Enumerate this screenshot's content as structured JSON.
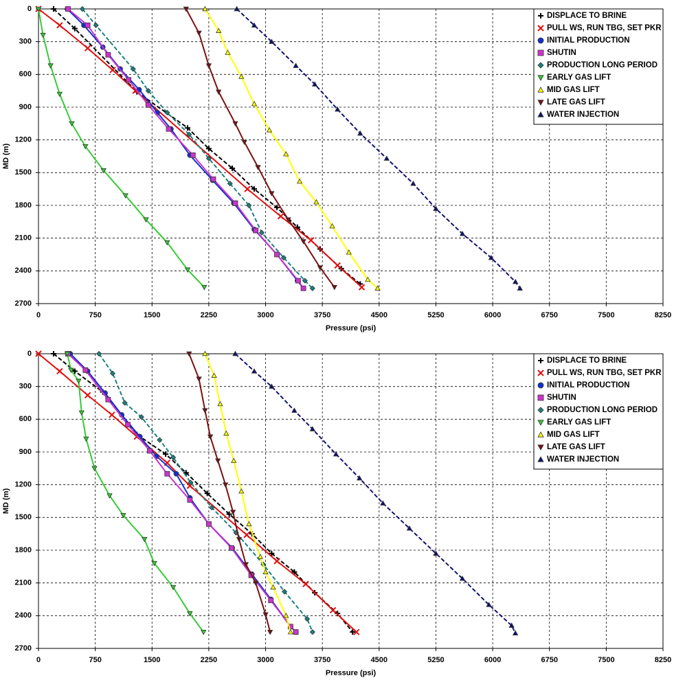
{
  "chart_data": [
    {
      "type": "line",
      "xlabel": "Pressure (psi)",
      "ylabel": "MD (m)",
      "xlim": [
        0,
        8250
      ],
      "xticks": [
        0,
        750,
        1500,
        2250,
        3000,
        3750,
        4500,
        5250,
        6000,
        6750,
        7500,
        8250
      ],
      "ylim": [
        2700,
        0
      ],
      "yticks": [
        0,
        300,
        600,
        900,
        1200,
        1500,
        1800,
        2100,
        2400,
        2700
      ],
      "grid": true,
      "legend": "upper right",
      "series": [
        {
          "name": "DISPLACE TO BRINE",
          "color": "#000000",
          "marker": "plus",
          "dashed": true,
          "x": [
            200,
            480,
            1300,
            1970,
            2250,
            2560,
            2850,
            3150,
            3420,
            3720,
            4000,
            4250
          ],
          "values": [
            0,
            180,
            760,
            1090,
            1280,
            1460,
            1650,
            1820,
            2000,
            2200,
            2380,
            2520
          ]
        },
        {
          "name": "PULL WS, RUN TBG, SET PKR",
          "color": "#e01010",
          "marker": "cross",
          "dashed": false,
          "x": [
            0,
            280,
            650,
            980,
            1280,
            2760,
            3200,
            3600,
            3950,
            4270
          ],
          "values": [
            0,
            150,
            360,
            560,
            750,
            1650,
            1900,
            2120,
            2350,
            2550
          ]
        },
        {
          "name": "INITIAL PRODUCTION",
          "color": "#1030d0",
          "marker": "circle",
          "dashed": false,
          "x": [
            380,
            600,
            850,
            1080,
            1330,
            1570,
            1750,
            2000,
            2300,
            2580,
            2850,
            3150,
            3420,
            3500
          ],
          "values": [
            0,
            150,
            350,
            550,
            740,
            950,
            1100,
            1340,
            1570,
            1780,
            2020,
            2250,
            2490,
            2560
          ]
        },
        {
          "name": "SHUTIN",
          "color": "#cc33cc",
          "marker": "square",
          "dashed": false,
          "x": [
            390,
            650,
            920,
            1190,
            1450,
            1720,
            2040,
            2310,
            2600,
            2870,
            3150,
            3430,
            3500
          ],
          "values": [
            0,
            150,
            420,
            650,
            880,
            1100,
            1340,
            1560,
            1780,
            2030,
            2250,
            2490,
            2560
          ]
        },
        {
          "name": "PRODUCTION LONG PERIOD",
          "color": "#1a8080",
          "marker": "diamond",
          "dashed": true,
          "x": [
            580,
            760,
            1250,
            1450,
            1700,
            1990,
            2250,
            2530,
            2780,
            2950,
            3240,
            3520,
            3620
          ],
          "values": [
            0,
            150,
            550,
            750,
            950,
            1150,
            1370,
            1600,
            1800,
            2050,
            2280,
            2490,
            2560
          ]
        },
        {
          "name": "EARLY GAS LIFT",
          "color": "#33cc33",
          "marker": "tri-down",
          "dashed": false,
          "x": [
            0,
            60,
            160,
            280,
            440,
            620,
            860,
            1150,
            1420,
            1700,
            1970,
            2190
          ],
          "values": [
            0,
            240,
            520,
            780,
            1050,
            1260,
            1480,
            1710,
            1930,
            2140,
            2390,
            2550
          ]
        },
        {
          "name": "MID GAS LIFT",
          "color": "#ffff00",
          "marker": "tri-up",
          "dashed": false,
          "x": [
            2200,
            2380,
            2500,
            2680,
            2850,
            3050,
            3270,
            3450,
            3670,
            3880,
            4100,
            4350,
            4480
          ],
          "values": [
            0,
            200,
            400,
            620,
            870,
            1110,
            1330,
            1580,
            1770,
            1990,
            2230,
            2480,
            2560
          ]
        },
        {
          "name": "LATE GAS LIFT",
          "color": "#7a1010",
          "marker": "tri-down",
          "dashed": false,
          "x": [
            1950,
            2120,
            2250,
            2380,
            2600,
            2720,
            2900,
            3080,
            3300,
            3500,
            3720,
            3910
          ],
          "values": [
            0,
            220,
            520,
            760,
            1050,
            1220,
            1450,
            1690,
            1930,
            2130,
            2370,
            2550
          ]
        },
        {
          "name": "WATER INJECTION",
          "color": "#10106e",
          "marker": "tri-up",
          "dashed": true,
          "x": [
            2620,
            2850,
            3080,
            3400,
            3650,
            3950,
            4250,
            4600,
            4950,
            5250,
            5600,
            5980,
            6300,
            6360
          ],
          "values": [
            0,
            150,
            300,
            520,
            690,
            920,
            1140,
            1370,
            1600,
            1830,
            2060,
            2280,
            2500,
            2560
          ]
        }
      ]
    },
    {
      "type": "line",
      "xlabel": "Pressure (psi)",
      "ylabel": "MD (m)",
      "xlim": [
        0,
        8250
      ],
      "xticks": [
        0,
        750,
        1500,
        2250,
        3000,
        3750,
        4500,
        5250,
        6000,
        6750,
        7500,
        8250
      ],
      "ylim": [
        2700,
        0
      ],
      "yticks": [
        0,
        300,
        600,
        900,
        1200,
        1500,
        1800,
        2100,
        2400,
        2700
      ],
      "grid": true,
      "legend": "upper right",
      "series": [
        {
          "name": "DISPLACE TO BRINE",
          "color": "#000000",
          "marker": "plus",
          "dashed": true,
          "x": [
            200,
            480,
            850,
            1300,
            1680,
            1950,
            2230,
            2520,
            2820,
            3080,
            3380,
            3650,
            3950,
            4150
          ],
          "values": [
            0,
            160,
            350,
            740,
            920,
            1090,
            1280,
            1470,
            1650,
            1830,
            2000,
            2190,
            2380,
            2550
          ]
        },
        {
          "name": "PULL WS, RUN TBG, SET PKR",
          "color": "#e01010",
          "marker": "cross",
          "dashed": false,
          "x": [
            0,
            280,
            650,
            970,
            1300,
            1700,
            2000,
            2750,
            3150,
            3530,
            3890,
            4200
          ],
          "values": [
            0,
            160,
            380,
            560,
            760,
            1000,
            1210,
            1660,
            1900,
            2110,
            2350,
            2550
          ]
        },
        {
          "name": "INITIAL PRODUCTION",
          "color": "#1030d0",
          "marker": "circle",
          "dashed": false,
          "x": [
            420,
            650,
            880,
            1100,
            1340,
            1560,
            1820,
            2000,
            2250,
            2560,
            2820,
            3070,
            3330,
            3400
          ],
          "values": [
            0,
            160,
            360,
            560,
            760,
            940,
            1100,
            1320,
            1560,
            1780,
            2020,
            2250,
            2500,
            2550
          ]
        },
        {
          "name": "SHUTIN",
          "color": "#cc33cc",
          "marker": "square",
          "dashed": false,
          "x": [
            390,
            620,
            920,
            1180,
            1470,
            1700,
            2000,
            2250,
            2550,
            2810,
            3070,
            3330,
            3400
          ],
          "values": [
            0,
            150,
            420,
            650,
            890,
            1100,
            1340,
            1560,
            1780,
            2030,
            2260,
            2500,
            2550
          ]
        },
        {
          "name": "PRODUCTION LONG PERIOD",
          "color": "#1a8080",
          "marker": "diamond",
          "dashed": true,
          "x": [
            800,
            980,
            1140,
            1360,
            1600,
            1780,
            2010,
            2290,
            2610,
            2970,
            3250,
            3550,
            3620
          ],
          "values": [
            0,
            180,
            450,
            580,
            790,
            950,
            1180,
            1410,
            1640,
            1930,
            2180,
            2430,
            2550
          ]
        },
        {
          "name": "EARLY GAS LIFT",
          "color": "#33cc33",
          "marker": "tri-down",
          "dashed": false,
          "x": [
            380,
            430,
            530,
            570,
            630,
            740,
            940,
            1120,
            1400,
            1530,
            1780,
            2000,
            2180
          ],
          "values": [
            0,
            150,
            250,
            540,
            780,
            1050,
            1300,
            1480,
            1700,
            1920,
            2140,
            2380,
            2550
          ]
        },
        {
          "name": "MID GAS LIFT",
          "color": "#ffff00",
          "marker": "tri-up",
          "dashed": false,
          "x": [
            2200,
            2320,
            2400,
            2480,
            2580,
            2680,
            2780,
            2930,
            3000,
            3100,
            3270,
            3330
          ],
          "values": [
            0,
            200,
            460,
            730,
            980,
            1260,
            1560,
            1860,
            2000,
            2140,
            2400,
            2550
          ]
        },
        {
          "name": "LATE GAS LIFT",
          "color": "#7a1010",
          "marker": "tri-down",
          "dashed": false,
          "x": [
            1990,
            2120,
            2200,
            2270,
            2370,
            2470,
            2570,
            2650,
            2740,
            2870,
            3000,
            3060
          ],
          "values": [
            0,
            230,
            520,
            760,
            980,
            1200,
            1450,
            1700,
            1930,
            2100,
            2390,
            2550
          ]
        },
        {
          "name": "WATER INJECTION",
          "color": "#10106e",
          "marker": "tri-up",
          "dashed": true,
          "x": [
            2600,
            2850,
            3080,
            3380,
            3620,
            3930,
            4240,
            4550,
            4900,
            5250,
            5600,
            5950,
            6250,
            6300
          ],
          "values": [
            0,
            160,
            300,
            520,
            690,
            920,
            1140,
            1370,
            1600,
            1830,
            2060,
            2300,
            2490,
            2560
          ]
        }
      ]
    }
  ]
}
